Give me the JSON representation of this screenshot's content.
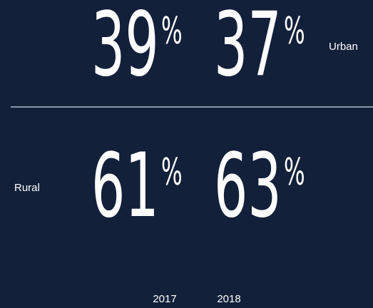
{
  "rows": [
    {
      "label": "Urban",
      "cells": [
        {
          "number": "39",
          "unit": "%"
        },
        {
          "number": "37",
          "unit": "%"
        }
      ]
    },
    {
      "label": "Rural",
      "cells": [
        {
          "number": "61",
          "unit": "%"
        },
        {
          "number": "63",
          "unit": "%"
        }
      ]
    }
  ],
  "years": [
    "2017",
    "2018"
  ]
}
